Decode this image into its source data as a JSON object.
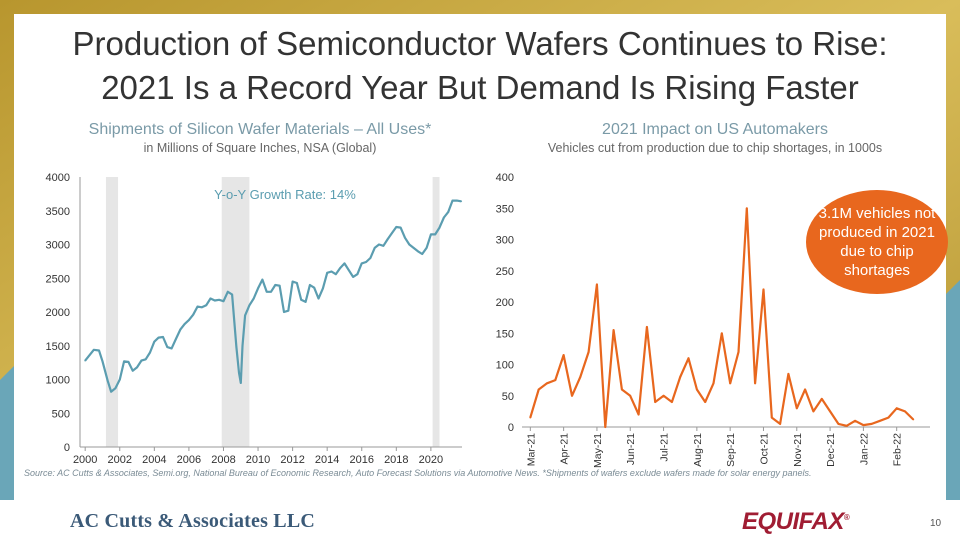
{
  "title_line1": "Production of Semiconductor Wafers Continues to Rise:",
  "title_line2": "2021 Is a Record Year But Demand Is Rising Faster",
  "colors": {
    "line_blue": "#5b9db0",
    "line_orange": "#e8671e",
    "recession_gray": "#e6e6e6"
  },
  "chart_data": [
    {
      "type": "line",
      "title": "Shipments of Silicon Wafer Materials – All Uses*",
      "subtitle": "in Millions of Square Inches, NSA (Global)",
      "annotation": "Y-o-Y Growth Rate:  14%",
      "xlim": [
        1999.7,
        2021.8
      ],
      "ylim": [
        0,
        4000
      ],
      "yticks": [
        0,
        500,
        1000,
        1500,
        2000,
        2500,
        3000,
        3500,
        4000
      ],
      "xticks": [
        2000,
        2002,
        2004,
        2006,
        2008,
        2010,
        2012,
        2014,
        2016,
        2018,
        2020
      ],
      "recessions": [
        [
          2001.2,
          2001.9
        ],
        [
          2007.9,
          2009.5
        ],
        [
          2020.1,
          2020.5
        ]
      ],
      "series": [
        {
          "name": "Shipments",
          "x": [
            2000,
            2000.5,
            2000.8,
            2001.0,
            2001.3,
            2001.5,
            2001.75,
            2002.0,
            2002.25,
            2002.5,
            2002.75,
            2003.0,
            2003.25,
            2003.5,
            2003.75,
            2004.0,
            2004.25,
            2004.5,
            2004.75,
            2005.0,
            2005.25,
            2005.5,
            2005.75,
            2006.0,
            2006.25,
            2006.5,
            2006.75,
            2007.0,
            2007.25,
            2007.5,
            2007.75,
            2008.0,
            2008.25,
            2008.5,
            2008.75,
            2008.9,
            2009.0,
            2009.1,
            2009.25,
            2009.5,
            2009.75,
            2010.0,
            2010.25,
            2010.5,
            2010.75,
            2011.0,
            2011.25,
            2011.5,
            2011.75,
            2012.0,
            2012.25,
            2012.5,
            2012.75,
            2013.0,
            2013.25,
            2013.5,
            2013.75,
            2014.0,
            2014.25,
            2014.5,
            2014.75,
            2015.0,
            2015.25,
            2015.5,
            2015.75,
            2016.0,
            2016.25,
            2016.5,
            2016.75,
            2017.0,
            2017.25,
            2017.5,
            2017.75,
            2018.0,
            2018.25,
            2018.5,
            2018.75,
            2019.0,
            2019.25,
            2019.5,
            2019.75,
            2020.0,
            2020.25,
            2020.5,
            2020.75,
            2021.0,
            2021.25,
            2021.5,
            2021.75
          ],
          "values": [
            1280,
            1440,
            1430,
            1270,
            980,
            820,
            870,
            1000,
            1270,
            1260,
            1130,
            1180,
            1280,
            1300,
            1400,
            1560,
            1620,
            1630,
            1480,
            1460,
            1600,
            1740,
            1820,
            1880,
            1960,
            2080,
            2070,
            2100,
            2200,
            2170,
            2180,
            2160,
            2300,
            2260,
            1480,
            1100,
            950,
            1500,
            1950,
            2100,
            2200,
            2350,
            2480,
            2300,
            2300,
            2400,
            2390,
            2000,
            2020,
            2450,
            2430,
            2180,
            2150,
            2400,
            2360,
            2200,
            2350,
            2580,
            2600,
            2560,
            2650,
            2720,
            2620,
            2520,
            2560,
            2720,
            2740,
            2800,
            2950,
            3000,
            2980,
            3080,
            3170,
            3260,
            3250,
            3100,
            3000,
            2950,
            2900,
            2860,
            2950,
            3150,
            3150,
            3250,
            3400,
            3480,
            3650,
            3650,
            3640
          ]
        }
      ]
    },
    {
      "type": "line",
      "title": "2021 Impact on US Automakers",
      "subtitle": "Vehicles cut from production due to chip shortages, in 1000s",
      "callout": "3.1M vehicles not produced in 2021 due to chip shortages",
      "xlim": [
        0,
        49
      ],
      "ylim": [
        0,
        400
      ],
      "yticks": [
        0,
        50,
        100,
        150,
        200,
        250,
        300,
        350,
        400
      ],
      "xtick_labels": [
        "Mar-21",
        "Apr-21",
        "May-21",
        "Jun-21",
        "Jul-21",
        "Aug-21",
        "Sep-21",
        "Oct-21",
        "Nov-21",
        "Dec-21",
        "Jan-22",
        "Feb-22"
      ],
      "series": [
        {
          "name": "Vehicles cut",
          "values": [
            15,
            60,
            70,
            75,
            115,
            50,
            80,
            120,
            228,
            0,
            155,
            60,
            50,
            20,
            160,
            40,
            50,
            40,
            80,
            110,
            60,
            40,
            70,
            150,
            70,
            120,
            350,
            70,
            220,
            15,
            5,
            85,
            30,
            60,
            25,
            45,
            25,
            5,
            2,
            10,
            3,
            5,
            10,
            15,
            30,
            25,
            12
          ]
        }
      ]
    }
  ],
  "source": "Source: AC Cutts & Associates, Semi.org, National Bureau of Economic Research, Auto Forecast Solutions via Automotive News. *Shipments of wafers exclude wafers made for solar energy panels.",
  "brand": "AC Cutts & Associates LLC",
  "logo": "EQUIFAX",
  "page_number": "10"
}
